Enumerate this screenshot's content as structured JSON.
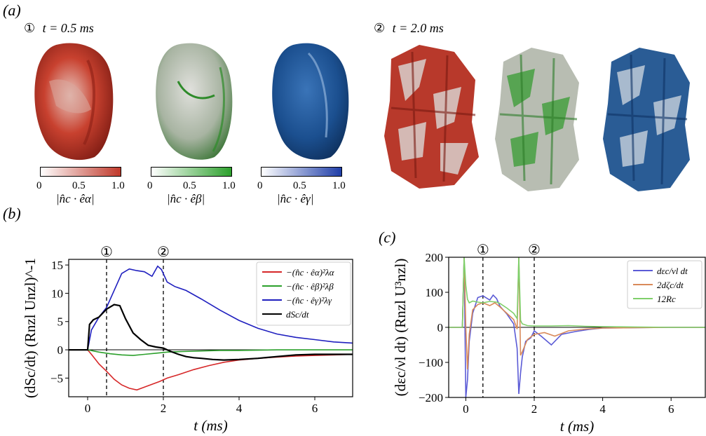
{
  "panels": {
    "a": {
      "label": "(a)"
    },
    "b": {
      "label": "(b)"
    },
    "c": {
      "label": "(c)"
    }
  },
  "snapshots": [
    {
      "marker": "①",
      "time": "t = 0.5 ms"
    },
    {
      "marker": "②",
      "time": "t = 2.0 ms"
    }
  ],
  "colorbars": [
    {
      "ticks": [
        "0",
        "0.5",
        "1.0"
      ],
      "label": "|n̂c · êα|",
      "color": "#c0392b"
    },
    {
      "ticks": [
        "0",
        "0.5",
        "1.0"
      ],
      "label": "|n̂c · êβ|",
      "color": "#2ca02c"
    },
    {
      "ticks": [
        "0",
        "0.5",
        "1.0"
      ],
      "label": "|n̂c · êγ|",
      "color": "#1f3ea8"
    }
  ],
  "chart_data": [
    {
      "type": "line",
      "panel": "(b)",
      "xlabel": "t (ms)",
      "ylabel": "(dSc/dt) (Rnzl Unzl)^-1",
      "xlim": [
        -0.5,
        7
      ],
      "ylim": [
        -8.3,
        16
      ],
      "xticks": [
        "0",
        "2",
        "4",
        "6"
      ],
      "yticks": [
        "−5",
        "0",
        "5",
        "10",
        "15"
      ],
      "markers": [
        {
          "x": 0.5,
          "label": "①"
        },
        {
          "x": 2.0,
          "label": "②"
        }
      ],
      "legend": "top-right",
      "series": [
        {
          "name": "−(n̂c · êα)²λα",
          "color": "#d62728",
          "x": [
            -0.5,
            0.0,
            0.1,
            0.3,
            0.5,
            0.7,
            0.9,
            1.1,
            1.3,
            1.5,
            1.7,
            1.9,
            2.1,
            2.4,
            2.8,
            3.2,
            3.6,
            4.0,
            4.5,
            5.0,
            5.5,
            6.0,
            6.5,
            7.0
          ],
          "y": [
            0,
            0,
            -0.8,
            -2.5,
            -3.8,
            -5.2,
            -6.2,
            -6.8,
            -7.1,
            -6.6,
            -6.1,
            -5.6,
            -5.0,
            -4.4,
            -3.5,
            -2.8,
            -2.2,
            -1.8,
            -1.5,
            -1.3,
            -1.1,
            -1.0,
            -0.9,
            -0.8
          ]
        },
        {
          "name": "−(n̂c · êβ)²λβ",
          "color": "#2ca02c",
          "x": [
            -0.5,
            0.0,
            0.3,
            0.6,
            0.9,
            1.2,
            1.5,
            1.8,
            2.1,
            2.5,
            3.0,
            3.5,
            4.0,
            5.0,
            6.0,
            7.0
          ],
          "y": [
            0,
            0,
            -0.4,
            -0.7,
            -0.9,
            -1.0,
            -0.8,
            -0.6,
            -0.4,
            -0.3,
            -0.2,
            -0.1,
            -0.1,
            0,
            0,
            0
          ]
        },
        {
          "name": "−(n̂c · êγ)²λγ",
          "color": "#1f1fbf",
          "x": [
            -0.5,
            0.0,
            0.1,
            0.3,
            0.5,
            0.7,
            0.9,
            1.1,
            1.3,
            1.5,
            1.7,
            1.85,
            1.95,
            2.1,
            2.3,
            2.6,
            3.0,
            3.5,
            4.0,
            4.5,
            5.0,
            5.5,
            6.0,
            6.5,
            7.0
          ],
          "y": [
            0,
            0,
            3.5,
            5.8,
            7.5,
            10.5,
            13.5,
            14.3,
            14.0,
            13.8,
            13.0,
            14.8,
            14.2,
            12.0,
            11.2,
            10.5,
            9.0,
            7.0,
            5.2,
            3.8,
            2.8,
            2.2,
            1.8,
            1.4,
            1.2
          ]
        },
        {
          "name": "dSc/dt",
          "color": "#000000",
          "x": [
            -0.5,
            0.0,
            0.05,
            0.15,
            0.3,
            0.5,
            0.7,
            0.85,
            1.0,
            1.2,
            1.4,
            1.6,
            1.8,
            2.0,
            2.2,
            2.4,
            2.6,
            2.8,
            3.0,
            3.3,
            3.6,
            4.0,
            4.5,
            5.0,
            5.5,
            6.0,
            6.5,
            7.0
          ],
          "y": [
            0,
            0,
            4.5,
            5.3,
            5.8,
            7.2,
            8.0,
            7.8,
            5.5,
            3.0,
            1.8,
            0.8,
            0.5,
            0.3,
            -0.3,
            -0.8,
            -1.2,
            -1.4,
            -1.5,
            -1.7,
            -1.8,
            -1.7,
            -1.5,
            -1.2,
            -0.9,
            -0.8,
            -0.8,
            -0.8
          ]
        }
      ]
    },
    {
      "type": "line",
      "panel": "(c)",
      "xlabel": "t (ms)",
      "ylabel": "(dεc/νl dt) (Rnzl U³nzl)",
      "xlim": [
        -0.5,
        7
      ],
      "ylim": [
        -200,
        200
      ],
      "xticks": [
        "0",
        "2",
        "4",
        "6"
      ],
      "yticks": [
        "−200",
        "−100",
        "0",
        "100",
        "200"
      ],
      "markers": [
        {
          "x": 0.5,
          "label": "①"
        },
        {
          "x": 2.0,
          "label": "②"
        }
      ],
      "legend": "top-right",
      "series": [
        {
          "name": "dεc/νl dt",
          "color": "#5b5bd6",
          "x": [
            -0.5,
            -0.1,
            -0.05,
            0.0,
            0.05,
            0.1,
            0.2,
            0.35,
            0.5,
            0.7,
            0.8,
            0.9,
            1.0,
            1.2,
            1.4,
            1.5,
            1.55,
            1.6,
            1.65,
            1.75,
            1.9,
            2.0,
            2.2,
            2.5,
            2.8,
            3.2,
            3.6,
            4.0,
            5.0,
            6.0,
            7.0
          ],
          "y": [
            0,
            0,
            200,
            -200,
            -150,
            -40,
            40,
            85,
            90,
            78,
            92,
            82,
            60,
            38,
            10,
            -60,
            -190,
            -130,
            -85,
            -40,
            -30,
            -10,
            -25,
            -50,
            -20,
            -12,
            -6,
            -2,
            -1,
            0,
            0
          ]
        },
        {
          "name": "2dζc/dt",
          "color": "#d98a5a",
          "x": [
            -0.5,
            -0.1,
            -0.05,
            0.0,
            0.05,
            0.1,
            0.2,
            0.35,
            0.5,
            0.7,
            0.85,
            1.0,
            1.2,
            1.4,
            1.5,
            1.55,
            1.6,
            1.65,
            1.8,
            2.0,
            2.3,
            2.6,
            3.0,
            3.5,
            4.0,
            5.0,
            6.0,
            7.0
          ],
          "y": [
            0,
            0,
            200,
            0,
            -120,
            -20,
            50,
            65,
            70,
            62,
            70,
            58,
            40,
            22,
            -5,
            200,
            -80,
            -70,
            -35,
            -20,
            -15,
            -25,
            -10,
            -5,
            -2,
            -1,
            0,
            0
          ]
        },
        {
          "name": "12Rc",
          "color": "#7fcf6a",
          "x": [
            -0.5,
            -0.1,
            -0.05,
            0.0,
            0.05,
            0.1,
            0.2,
            0.35,
            0.5,
            0.7,
            0.9,
            1.0,
            1.2,
            1.4,
            1.5,
            1.55,
            1.6,
            1.65,
            1.8,
            2.0,
            2.5,
            3.0,
            3.5,
            4.0,
            5.0,
            6.0,
            7.0
          ],
          "y": [
            0,
            0,
            200,
            120,
            80,
            70,
            75,
            72,
            70,
            74,
            72,
            68,
            55,
            40,
            25,
            200,
            20,
            10,
            5,
            4,
            4,
            5,
            3,
            2,
            1,
            0,
            0
          ]
        }
      ]
    }
  ]
}
